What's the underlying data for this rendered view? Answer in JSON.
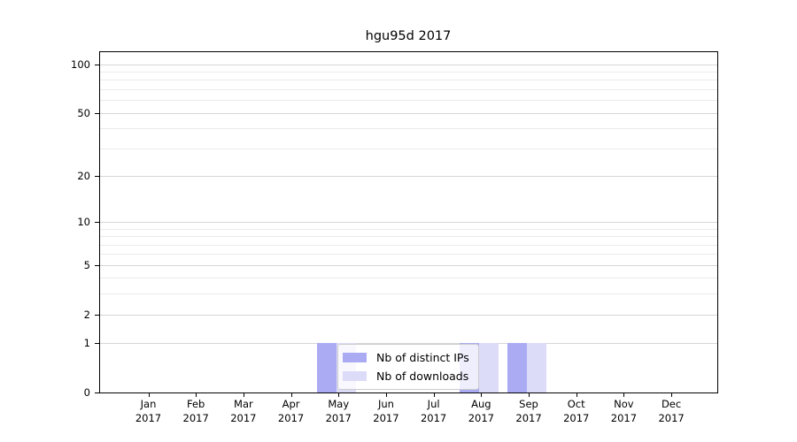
{
  "chart_data": {
    "type": "bar",
    "title": "hgu95d 2017",
    "categories": [
      "Jan",
      "Feb",
      "Mar",
      "Apr",
      "May",
      "Jun",
      "Jul",
      "Aug",
      "Sep",
      "Oct",
      "Nov",
      "Dec"
    ],
    "category_year": "2017",
    "series": [
      {
        "name": "Nb of distinct IPs",
        "color": "#ababf3",
        "values": [
          0,
          0,
          0,
          0,
          1,
          0,
          0,
          1,
          1,
          0,
          0,
          0
        ]
      },
      {
        "name": "Nb of downloads",
        "color": "#dcdcf9",
        "values": [
          0,
          0,
          0,
          0,
          1,
          0,
          0,
          1,
          1,
          0,
          0,
          0
        ]
      }
    ],
    "yscale": "log1p",
    "ylim": [
      0,
      120
    ],
    "y_major_ticks": [
      0,
      1,
      2,
      5,
      10,
      20,
      50,
      100
    ],
    "y_minor_gridlines": [
      3,
      4,
      6,
      7,
      8,
      9,
      30,
      40,
      60,
      70,
      80,
      90
    ],
    "grid": "horizontal",
    "legend_position": "bottom-center"
  },
  "colors": {
    "grid_major": "#d6d6d6",
    "grid_minor": "#ebebeb",
    "spine": "#000000",
    "legend_border": "#cccccc"
  }
}
